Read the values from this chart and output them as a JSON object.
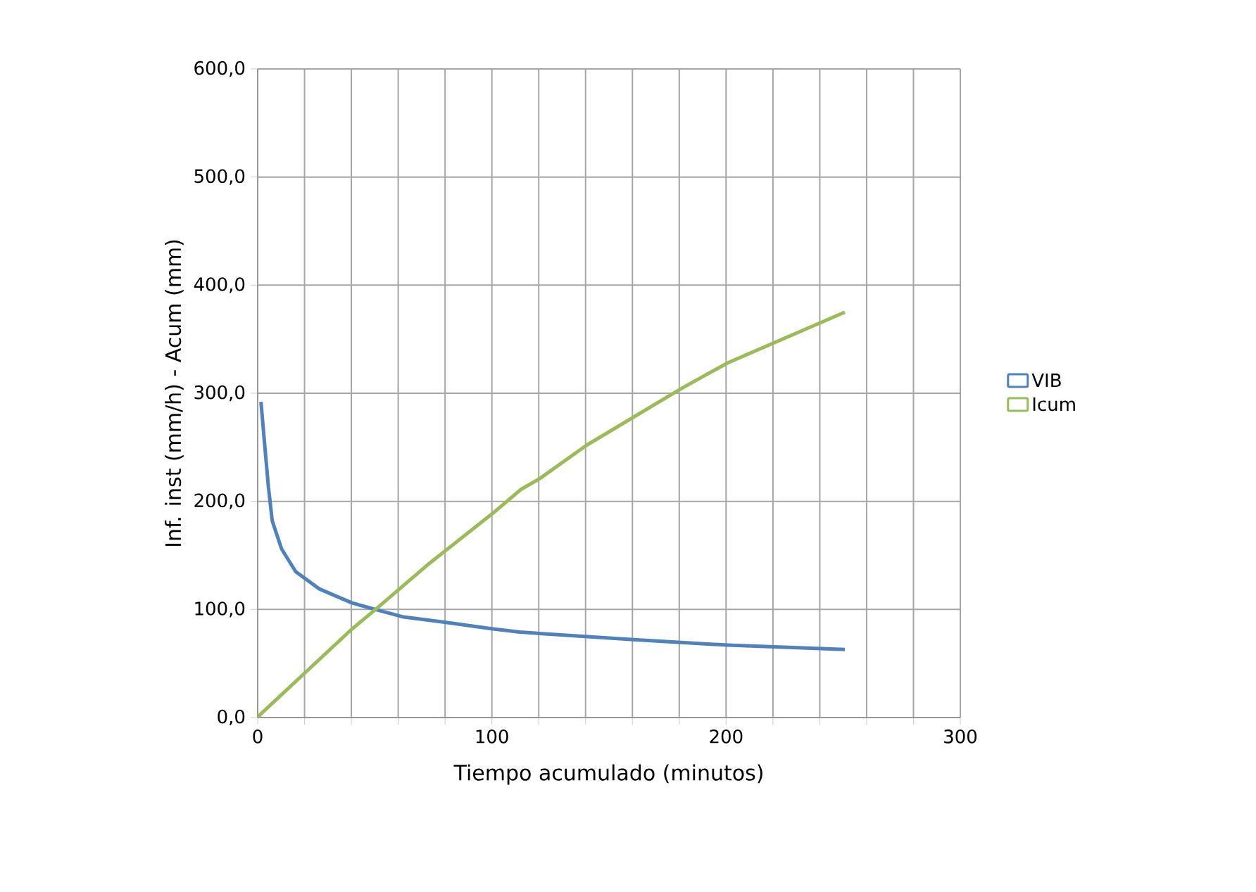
{
  "chart_data": {
    "type": "line",
    "xlabel": "Tiempo acumulado (minutos)",
    "ylabel": "Inf. inst (mm/h) - Acum (mm)",
    "xlim": [
      0,
      300
    ],
    "xticks": [
      0,
      {
        "value": 20,
        "label": null
      },
      {
        "value": 40,
        "label": null
      },
      {
        "value": 60,
        "label": null
      },
      {
        "value": 80,
        "label": null
      },
      100,
      {
        "value": 120,
        "label": null
      },
      {
        "value": 140,
        "label": null
      },
      {
        "value": 160,
        "label": null
      },
      {
        "value": 180,
        "label": null
      },
      200,
      {
        "value": 220,
        "label": null
      },
      {
        "value": 240,
        "label": null
      },
      {
        "value": 260,
        "label": null
      },
      {
        "value": 280,
        "label": null
      },
      300
    ],
    "ylim": [
      0,
      600
    ],
    "yticks": [
      {
        "value": 0,
        "label": "0,0"
      },
      {
        "value": 100,
        "label": "100,0"
      },
      {
        "value": 200,
        "label": "200,0"
      },
      {
        "value": 300,
        "label": "300,0"
      },
      {
        "value": 400,
        "label": "400,0"
      },
      {
        "value": 500,
        "label": "500,0"
      },
      {
        "value": 600,
        "label": "600,0"
      }
    ],
    "grid": true,
    "legend": "right",
    "marker": "none",
    "line_style": "solid",
    "series": [
      {
        "name": "VIB",
        "color": "#4f81bd",
        "x": [
          1.4,
          3.2,
          4.6,
          6.2,
          10.2,
          16.2,
          26.3,
          40.3,
          50.3,
          62.3,
          80.4,
          100.4,
          112,
          160.5,
          200.6,
          250.7
        ],
        "values": [
          292,
          247,
          213,
          182,
          156,
          135,
          119,
          106,
          100,
          93,
          88,
          82,
          79,
          72,
          67,
          63
        ]
      },
      {
        "name": "Icum",
        "color": "#9bbb59",
        "x": [
          0,
          1.2,
          40.3,
          50.3,
          72.4,
          100.4,
          112.4,
          120.4,
          140.5,
          180.6,
          200.6,
          250.7
        ],
        "values": [
          0,
          3,
          82,
          100,
          141,
          189,
          211,
          221,
          252,
          304,
          328,
          375
        ]
      }
    ]
  }
}
